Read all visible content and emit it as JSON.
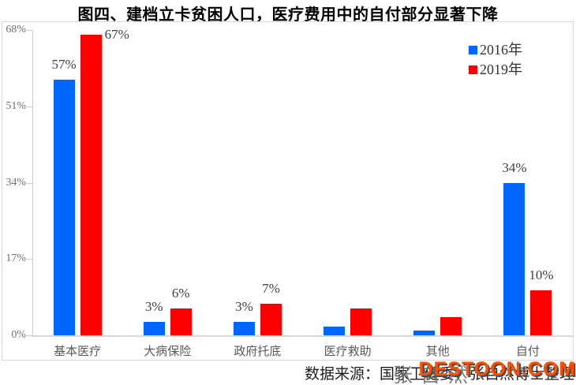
{
  "chart_data": {
    "type": "bar",
    "title": "图四、建档立卡贫困人口，医疗费用中的自付部分显著下降",
    "categories": [
      "基本医疗",
      "大病保险",
      "政府托底",
      "医疗救助",
      "其他",
      "自付"
    ],
    "series": [
      {
        "name": "2016年",
        "color": "#0066FF",
        "values": [
          57,
          3,
          3,
          2,
          1,
          34
        ],
        "labels": [
          "57%",
          "3%",
          "3%",
          "",
          "",
          "34%"
        ],
        "label_positions": [
          "above",
          "above",
          "above",
          "above",
          "above",
          "above"
        ]
      },
      {
        "name": "2019年",
        "color": "#FF0000",
        "values": [
          67,
          6,
          7,
          6,
          4,
          10
        ],
        "labels": [
          "67%",
          "6%",
          "7%",
          "",
          "",
          "10%"
        ],
        "label_positions": [
          "right",
          "above",
          "above",
          "above",
          "above",
          "above"
        ]
      }
    ],
    "y_axis": {
      "min": 0,
      "max": 68,
      "tick_labels": [
        "68%",
        "51%",
        "34%",
        "17%",
        "0%"
      ],
      "tick_values": [
        68,
        51,
        34,
        17,
        0
      ]
    },
    "xlabel": "",
    "ylabel": "",
    "grid": false,
    "legend_position": "top-right"
  },
  "footer": {
    "source_text": "数据来源：国家卫健委，张自然博士整理"
  },
  "watermarks": {
    "author_text": "张自然",
    "brand_text": "DESTOON.COM"
  },
  "colors": {
    "series_2016": "#0066FF",
    "series_2019": "#FF0000",
    "axis_line": "#d9d9d9",
    "tick_text": "#737373",
    "category_text": "#595959",
    "value_label_text": "#404040",
    "brand_watermark": "#ff4f00"
  }
}
